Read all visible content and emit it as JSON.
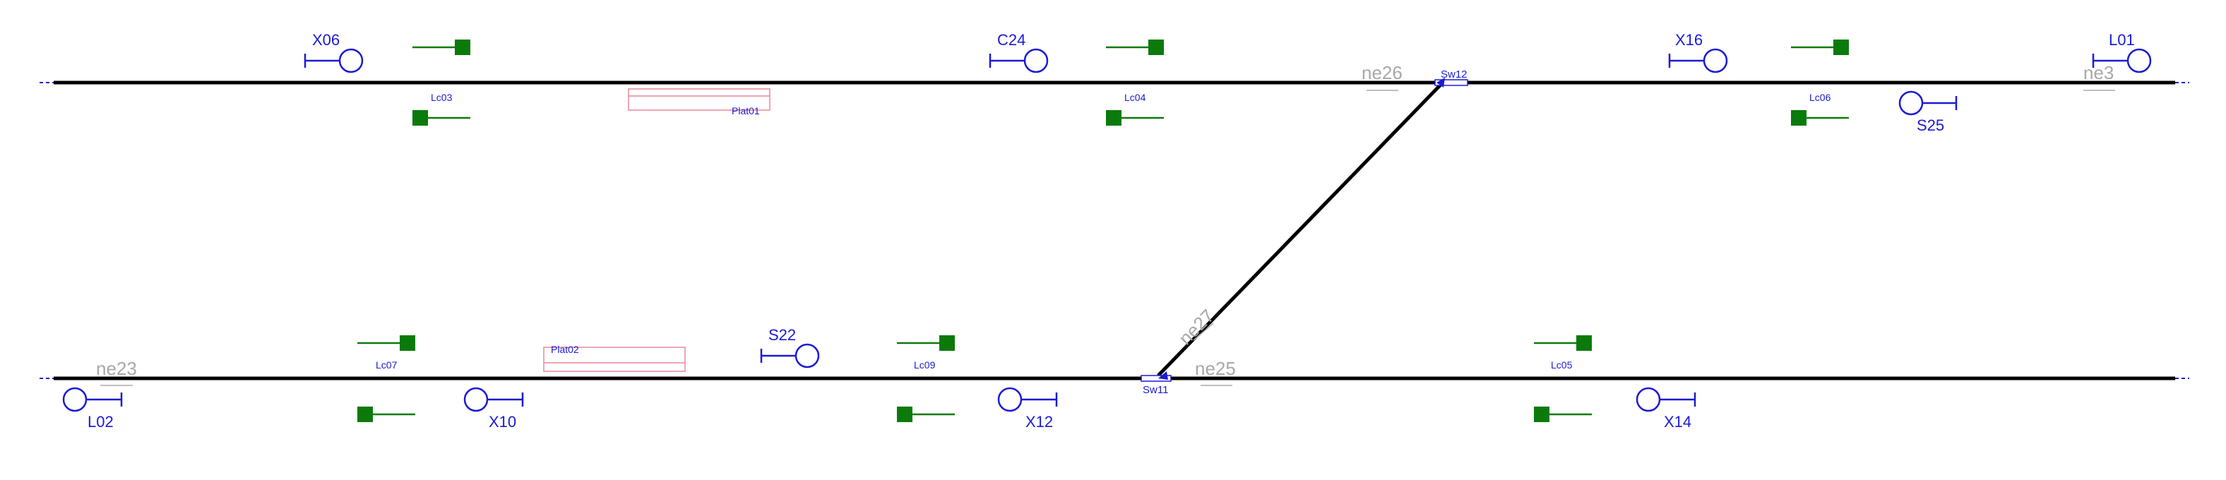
{
  "colors": {
    "track": "#000000",
    "signal": "#1a1ad6",
    "equipment": "#0a7a0a",
    "platform": "#e58a9a",
    "track_label": "#a8a8a8"
  },
  "tracks": {
    "ne23": "ne23",
    "ne25": "ne25",
    "ne26": "ne26",
    "ne27": "ne27",
    "ne3": "ne3"
  },
  "switches": {
    "sw11": "Sw11",
    "sw12": "Sw12"
  },
  "platforms": {
    "plat01": "Plat01",
    "plat02": "Plat02"
  },
  "signals": {
    "x06": "X06",
    "c24": "C24",
    "x16": "X16",
    "l01": "L01",
    "s25": "S25",
    "s22": "S22",
    "l02": "L02",
    "x10": "X10",
    "x12": "X12",
    "x14": "X14"
  },
  "level_crossings": {
    "lc03": "Lc03",
    "lc04": "Lc04",
    "lc06": "Lc06",
    "lc07": "Lc07",
    "lc09": "Lc09",
    "lc05": "Lc05"
  }
}
